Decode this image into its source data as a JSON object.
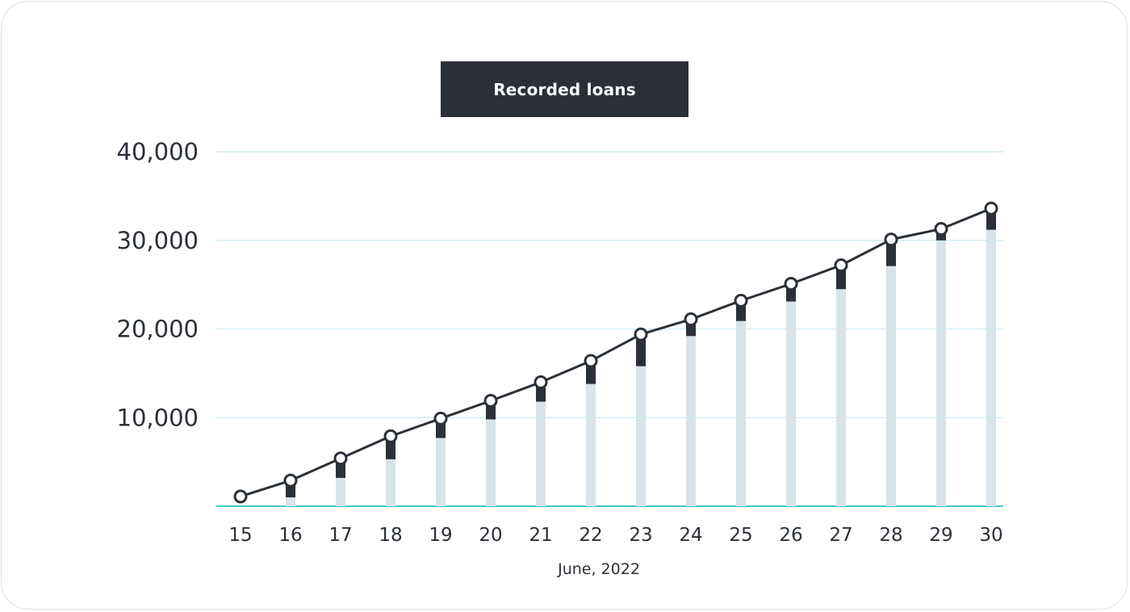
{
  "chart_data": {
    "type": "bar",
    "title": "Recorded loans",
    "xlabel": "June, 2022",
    "ylabel": "",
    "ylim": [
      0,
      40000
    ],
    "yticks": [
      "10,000",
      "20,000",
      "30,000",
      "40,000"
    ],
    "ytick_values": [
      10000,
      20000,
      30000,
      40000
    ],
    "categories": [
      "15",
      "16",
      "17",
      "18",
      "19",
      "20",
      "21",
      "22",
      "23",
      "24",
      "25",
      "26",
      "27",
      "28",
      "29",
      "30"
    ],
    "series": [
      {
        "kind": "bar-base",
        "values": [
          0,
          1000,
          3200,
          5300,
          7700,
          9800,
          11800,
          13800,
          15800,
          19200,
          20900,
          23100,
          24500,
          27100,
          30000,
          31200
        ]
      },
      {
        "kind": "bar-increment",
        "values": [
          0,
          1900,
          2200,
          2600,
          2200,
          2000,
          2200,
          2600,
          3600,
          1900,
          2300,
          2000,
          2700,
          3000,
          1300,
          2400
        ]
      },
      {
        "kind": "line-cumulative",
        "values": [
          1100,
          2900,
          5400,
          7900,
          9900,
          11900,
          14000,
          16400,
          19400,
          21100,
          23200,
          25100,
          27200,
          30100,
          31300,
          33600
        ]
      }
    ],
    "colors": {
      "base_bar": "#d8e4e8",
      "increment_bar": "#2b3038",
      "line": "#2b3038",
      "grid": "#d2eef3",
      "axis": "#3fc9cf",
      "marker_fill": "#ffffff"
    },
    "grid": true,
    "legend": "none"
  }
}
